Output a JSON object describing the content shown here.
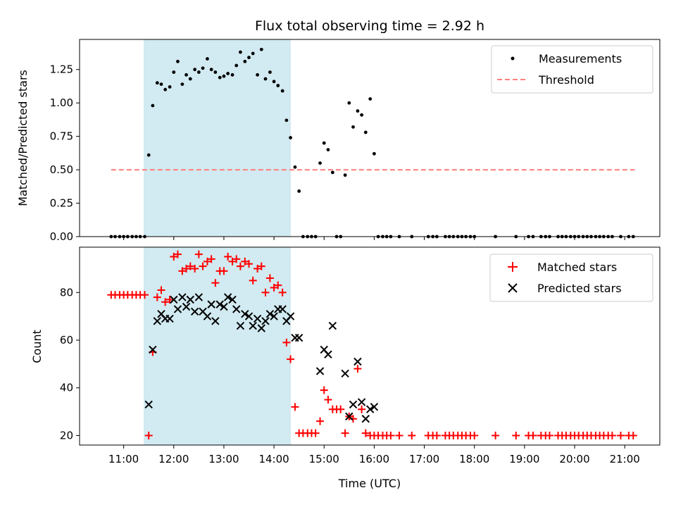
{
  "chart_data": [
    {
      "type": "scatter",
      "title": "Flux total observing time = 2.92 h",
      "xlabel": "",
      "ylabel": "Matched/Predicted stars",
      "xlim": [
        10.12,
        21.7
      ],
      "ylim": [
        0,
        1.475
      ],
      "yticks": [
        0.0,
        0.25,
        0.5,
        0.75,
        1.0,
        1.25
      ],
      "ytick_labels": [
        "0.00",
        "0.25",
        "0.50",
        "0.75",
        "1.00",
        "1.25"
      ],
      "shaded_region": {
        "x": [
          11.5,
          14.42
        ],
        "color": "#add8e6"
      },
      "legend_position": "upper right",
      "legend": [
        {
          "label": "Measurements",
          "marker": "dot",
          "color": "#000000"
        },
        {
          "label": "Threshold",
          "marker": "dashed-line",
          "color": "#ff7f7f"
        }
      ],
      "threshold": {
        "value": 0.5,
        "x": [
          10.75,
          21.2
        ],
        "color": "#ff7f7f"
      },
      "series": [
        {
          "name": "Measurements",
          "color": "#000000",
          "x": [
            10.75,
            10.83,
            10.92,
            11.0,
            11.08,
            11.17,
            11.25,
            11.33,
            11.42,
            11.5,
            11.58,
            11.67,
            11.75,
            11.83,
            11.92,
            12.0,
            12.08,
            12.17,
            12.25,
            12.33,
            12.42,
            12.5,
            12.58,
            12.67,
            12.75,
            12.83,
            12.92,
            13.0,
            13.08,
            13.17,
            13.25,
            13.33,
            13.42,
            13.5,
            13.58,
            13.67,
            13.75,
            13.83,
            13.92,
            14.0,
            14.08,
            14.17,
            14.25,
            14.33,
            14.42,
            14.5,
            14.58,
            14.67,
            14.75,
            14.83,
            14.92,
            15.0,
            15.08,
            15.17,
            15.25,
            15.33,
            15.42,
            15.5,
            15.58,
            15.67,
            15.75,
            15.83,
            15.92,
            16.0,
            16.08,
            16.17,
            16.25,
            16.33,
            16.5,
            16.75,
            17.08,
            17.17,
            17.25,
            17.42,
            17.5,
            17.58,
            17.67,
            17.75,
            17.83,
            17.92,
            18.0,
            18.42,
            18.83,
            19.08,
            19.17,
            19.33,
            19.42,
            19.5,
            19.67,
            19.75,
            19.83,
            19.92,
            20.0,
            20.08,
            20.17,
            20.25,
            20.33,
            20.42,
            20.5,
            20.58,
            20.67,
            20.75,
            20.92,
            21.08,
            21.17
          ],
          "values": [
            0,
            0,
            0,
            0,
            0,
            0,
            0,
            0,
            0,
            0.61,
            0.98,
            1.15,
            1.14,
            1.1,
            1.12,
            1.23,
            1.31,
            1.14,
            1.21,
            1.18,
            1.25,
            1.23,
            1.26,
            1.33,
            1.25,
            1.23,
            1.19,
            1.2,
            1.22,
            1.21,
            1.28,
            1.38,
            1.31,
            1.34,
            1.37,
            1.21,
            1.4,
            1.18,
            1.23,
            1.16,
            1.13,
            1.09,
            0.87,
            0.74,
            0.52,
            0.34,
            0,
            0,
            0,
            0,
            0.55,
            0.7,
            0.65,
            0.48,
            0,
            0,
            0.46,
            1.0,
            0.82,
            0.94,
            0.91,
            0.78,
            1.03,
            0.62,
            0,
            0,
            0,
            0,
            0,
            0,
            0,
            0,
            0,
            0,
            0,
            0,
            0,
            0,
            0,
            0,
            0,
            0,
            0,
            0,
            0,
            0,
            0,
            0,
            0,
            0,
            0,
            0,
            0,
            0,
            0,
            0,
            0,
            0,
            0,
            0,
            0,
            0,
            0,
            0,
            0
          ]
        }
      ]
    },
    {
      "type": "scatter",
      "title": "",
      "xlabel": "Time (UTC)",
      "ylabel": "Count",
      "xlim": [
        10.12,
        21.7
      ],
      "ylim": [
        16,
        99
      ],
      "yticks": [
        20,
        40,
        60,
        80
      ],
      "ytick_labels": [
        "20",
        "40",
        "60",
        "80"
      ],
      "xticks": [
        11,
        12,
        13,
        14,
        15,
        16,
        17,
        18,
        19,
        20,
        21
      ],
      "xtick_labels": [
        "11:00",
        "12:00",
        "13:00",
        "14:00",
        "15:00",
        "16:00",
        "17:00",
        "18:00",
        "19:00",
        "20:00",
        "21:00"
      ],
      "shaded_region": {
        "x": [
          11.5,
          14.42
        ],
        "color": "#add8e6"
      },
      "legend_position": "upper right",
      "legend": [
        {
          "label": "Matched stars",
          "marker": "plus",
          "color": "#ff0000"
        },
        {
          "label": "Predicted stars",
          "marker": "x",
          "color": "#000000"
        }
      ],
      "series": [
        {
          "name": "Matched stars",
          "color": "#ff0000",
          "marker": "plus",
          "x": [
            10.75,
            10.83,
            10.92,
            11.0,
            11.08,
            11.17,
            11.25,
            11.33,
            11.42,
            11.5,
            11.58,
            11.67,
            11.75,
            11.83,
            11.92,
            12.0,
            12.08,
            12.17,
            12.25,
            12.33,
            12.42,
            12.5,
            12.58,
            12.67,
            12.75,
            12.83,
            12.92,
            13.0,
            13.08,
            13.17,
            13.25,
            13.33,
            13.42,
            13.5,
            13.58,
            13.67,
            13.75,
            13.83,
            13.92,
            14.0,
            14.08,
            14.17,
            14.25,
            14.33,
            14.42,
            14.5,
            14.58,
            14.67,
            14.75,
            14.83,
            14.92,
            15.0,
            15.08,
            15.17,
            15.25,
            15.33,
            15.42,
            15.5,
            15.58,
            15.67,
            15.75,
            15.83,
            15.92,
            16.0,
            16.08,
            16.17,
            16.25,
            16.33,
            16.5,
            16.75,
            17.08,
            17.17,
            17.25,
            17.42,
            17.5,
            17.58,
            17.67,
            17.75,
            17.83,
            17.92,
            18.0,
            18.42,
            18.83,
            19.08,
            19.17,
            19.33,
            19.42,
            19.5,
            19.67,
            19.75,
            19.83,
            19.92,
            20.0,
            20.08,
            20.17,
            20.25,
            20.33,
            20.42,
            20.5,
            20.58,
            20.67,
            20.75,
            20.92,
            21.08,
            21.17
          ],
          "values": [
            79,
            79,
            79,
            79,
            79,
            79,
            79,
            79,
            79,
            20,
            55,
            78,
            81,
            76,
            77,
            95,
            96,
            89,
            90,
            91,
            90,
            96,
            91,
            93,
            94,
            84,
            89,
            89,
            95,
            93,
            94,
            91,
            93,
            92,
            85,
            90,
            91,
            80,
            86,
            82,
            83,
            80,
            59,
            52,
            32,
            21,
            21,
            21,
            21,
            21,
            26,
            39,
            35,
            31,
            31,
            31,
            21,
            28,
            27,
            48,
            31,
            21,
            20,
            20,
            20,
            20,
            20,
            20,
            20,
            20,
            20,
            20,
            20,
            20,
            20,
            20,
            20,
            20,
            20,
            20,
            20,
            20,
            20,
            20,
            20,
            20,
            20,
            20,
            20,
            20,
            20,
            20,
            20,
            20,
            20,
            20,
            20,
            20,
            20,
            20,
            20,
            20,
            20,
            20,
            20
          ]
        },
        {
          "name": "Predicted stars",
          "color": "#000000",
          "marker": "x",
          "x": [
            11.5,
            11.58,
            11.67,
            11.75,
            11.83,
            11.92,
            12.0,
            12.08,
            12.17,
            12.25,
            12.33,
            12.42,
            12.5,
            12.58,
            12.67,
            12.75,
            12.83,
            12.92,
            13.0,
            13.08,
            13.17,
            13.25,
            13.33,
            13.42,
            13.5,
            13.58,
            13.67,
            13.75,
            13.83,
            13.92,
            14.0,
            14.08,
            14.17,
            14.25,
            14.33,
            14.42,
            14.5,
            14.92,
            15.0,
            15.08,
            15.17,
            15.42,
            15.5,
            15.58,
            15.67,
            15.75,
            15.83,
            15.92,
            16.0
          ],
          "values": [
            33,
            56,
            68,
            71,
            69,
            69,
            77,
            73,
            78,
            74,
            77,
            72,
            78,
            72,
            70,
            75,
            68,
            75,
            74,
            78,
            77,
            73,
            66,
            71,
            70,
            66,
            69,
            65,
            68,
            71,
            70,
            73,
            73,
            68,
            70,
            61,
            61,
            47,
            56,
            54,
            66,
            46,
            28,
            33,
            51,
            34,
            27,
            31,
            32
          ]
        }
      ]
    }
  ]
}
